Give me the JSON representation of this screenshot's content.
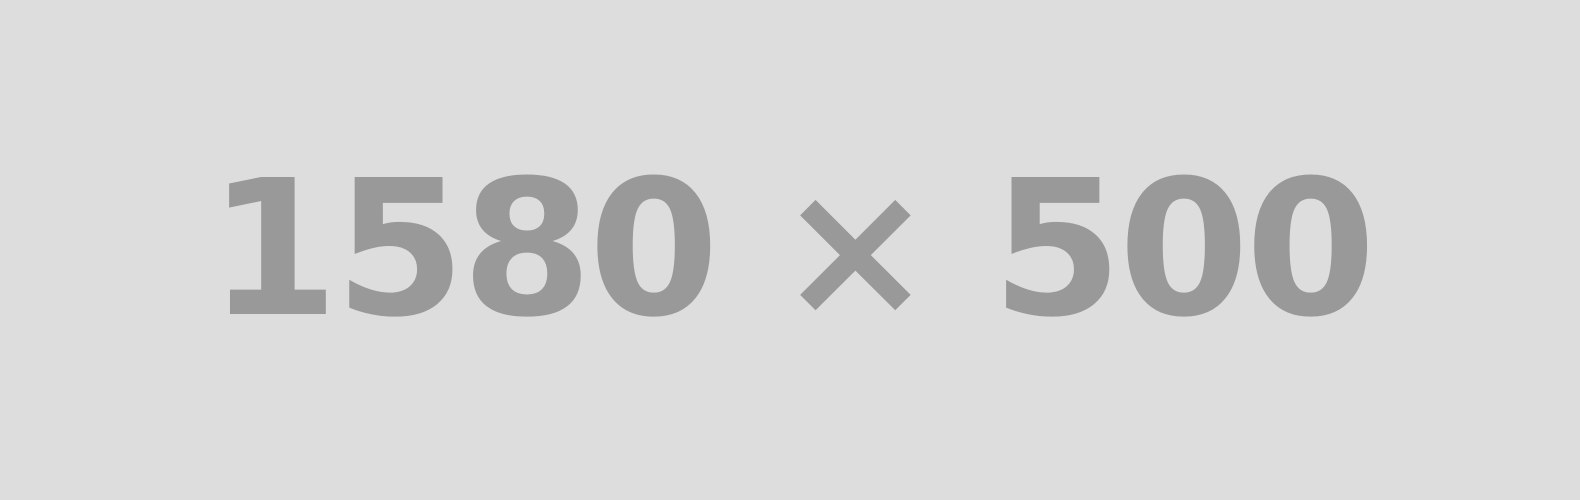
{
  "placeholder": {
    "label": "1580 × 500",
    "background_color": "#dddddd",
    "text_color": "#999999"
  }
}
